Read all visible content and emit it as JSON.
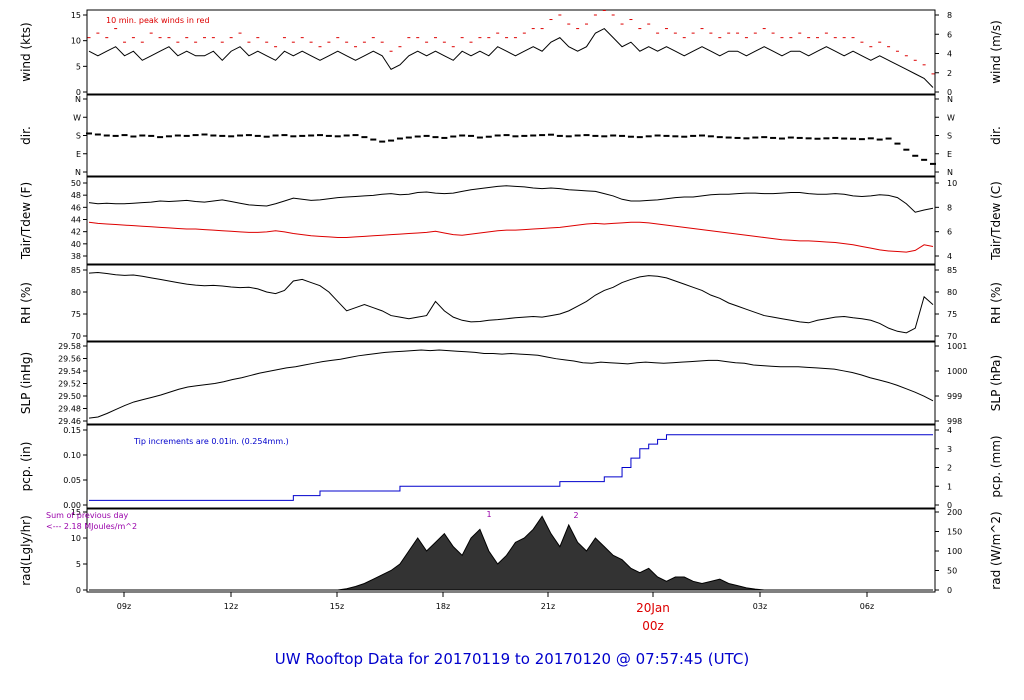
{
  "footer_title": "UW Rooftop Data for 20170119  to  20170120 @ 07:57:45  (UTC)",
  "colors": {
    "axis": "#000000",
    "red": "#dd0000",
    "blue": "#0000cc",
    "purple": "#9900aa"
  },
  "chart_data": [
    {
      "id": "wind",
      "type": "line",
      "ylabel_left": "wind (kts)",
      "ylabel_right": "wind (m/s)",
      "yticks_left": [
        "0",
        "5",
        "10",
        "15"
      ],
      "yticks_right": [
        "0",
        "2",
        "4",
        "6",
        "8"
      ],
      "ylim": [
        0,
        17
      ],
      "annotation": "10 min. peak winds in red",
      "series": [
        {
          "values": [
            9,
            8,
            9,
            10,
            8,
            9,
            7,
            8,
            9,
            10,
            8,
            9,
            8,
            8,
            9,
            7,
            9,
            10,
            8,
            9,
            8,
            7,
            9,
            8,
            9,
            8,
            7,
            8,
            9,
            8,
            7,
            8,
            9,
            8,
            5,
            6,
            8,
            9,
            8,
            9,
            8,
            7,
            9,
            8,
            9,
            8,
            10,
            9,
            8,
            9,
            10,
            9,
            11,
            12,
            10,
            9,
            10,
            13,
            14,
            12,
            10,
            11,
            9,
            10,
            9,
            10,
            9,
            8,
            9,
            10,
            9,
            8,
            9,
            9,
            8,
            9,
            10,
            9,
            8,
            9,
            9,
            8,
            9,
            10,
            9,
            8,
            9,
            8,
            7,
            8,
            7,
            6,
            5,
            4,
            3,
            1
          ]
        },
        {
          "values": [
            12,
            13,
            12,
            14,
            11,
            12,
            11,
            13,
            12,
            12,
            11,
            12,
            11,
            12,
            12,
            11,
            12,
            13,
            11,
            12,
            11,
            10,
            12,
            11,
            12,
            11,
            10,
            11,
            12,
            11,
            10,
            11,
            12,
            11,
            9,
            10,
            12,
            12,
            11,
            12,
            11,
            10,
            12,
            11,
            12,
            12,
            13,
            12,
            12,
            13,
            14,
            14,
            16,
            17,
            15,
            14,
            15,
            17,
            18,
            17,
            15,
            16,
            14,
            15,
            13,
            14,
            13,
            12,
            13,
            14,
            13,
            12,
            13,
            13,
            12,
            13,
            14,
            13,
            12,
            12,
            13,
            12,
            12,
            13,
            12,
            12,
            12,
            11,
            10,
            11,
            10,
            9,
            8,
            7,
            6,
            4
          ]
        }
      ]
    },
    {
      "id": "dir",
      "type": "scatter",
      "ylabel_left": "dir.",
      "ylabel_right": "dir.",
      "yticks_left": [
        "N",
        "E",
        "S",
        "W",
        "N"
      ],
      "yticks_right": [
        "N",
        "E",
        "S",
        "W",
        "N"
      ],
      "ylim": [
        0,
        360
      ],
      "series": [
        {
          "values": [
            190,
            185,
            180,
            178,
            182,
            175,
            180,
            178,
            172,
            176,
            180,
            178,
            182,
            185,
            180,
            178,
            176,
            180,
            182,
            178,
            174,
            180,
            182,
            176,
            178,
            180,
            182,
            178,
            176,
            180,
            182,
            172,
            160,
            150,
            155,
            165,
            170,
            175,
            178,
            172,
            168,
            175,
            180,
            178,
            170,
            174,
            180,
            182,
            176,
            178,
            180,
            182,
            184,
            178,
            176,
            180,
            182,
            178,
            176,
            180,
            178,
            174,
            172,
            176,
            180,
            178,
            176,
            174,
            178,
            180,
            176,
            172,
            170,
            168,
            166,
            170,
            172,
            168,
            165,
            170,
            168,
            166,
            164,
            166,
            168,
            165,
            164,
            162,
            166,
            160,
            165,
            140,
            110,
            80,
            60,
            40
          ]
        }
      ]
    },
    {
      "id": "temp",
      "type": "line",
      "ylabel_left": "Tair/Tdew (F)",
      "ylabel_right": "Tair/Tdew (C)",
      "yticks_left": [
        "38",
        "40",
        "42",
        "44",
        "46",
        "48",
        "50"
      ],
      "yticks_right": [
        "4",
        "6",
        "8",
        "10"
      ],
      "ylim": [
        37.5,
        50.5
      ],
      "series": [
        {
          "values": [
            47,
            46.8,
            46.9,
            46.8,
            46.8,
            46.9,
            47,
            47.1,
            47.3,
            47.2,
            47.3,
            47.4,
            47.2,
            47.1,
            47.3,
            47.5,
            47.2,
            46.9,
            46.6,
            46.5,
            46.4,
            46.8,
            47.3,
            47.8,
            47.6,
            47.4,
            47.5,
            47.7,
            47.9,
            48,
            48.1,
            48.2,
            48.3,
            48.5,
            48.6,
            48.4,
            48.5,
            48.8,
            48.9,
            48.7,
            48.6,
            48.7,
            49,
            49.3,
            49.5,
            49.7,
            49.9,
            50,
            49.9,
            49.8,
            49.6,
            49.5,
            49.6,
            49.5,
            49.3,
            49.2,
            49.1,
            49,
            48.6,
            48.2,
            47.6,
            47.3,
            47.3,
            47.4,
            47.5,
            47.7,
            47.9,
            48,
            48,
            48.2,
            48.4,
            48.5,
            48.5,
            48.6,
            48.7,
            48.7,
            48.6,
            48.6,
            48.7,
            48.8,
            48.8,
            48.6,
            48.5,
            48.5,
            48.6,
            48.5,
            48.2,
            48.1,
            48.2,
            48.4,
            48.3,
            47.9,
            46.8,
            45.3,
            45.7,
            46
          ]
        },
        {
          "values": [
            43.5,
            43.3,
            43.2,
            43.1,
            43,
            42.9,
            42.8,
            42.7,
            42.6,
            42.5,
            42.4,
            42.3,
            42.3,
            42.2,
            42.1,
            42,
            41.9,
            41.8,
            41.7,
            41.7,
            41.8,
            42,
            41.8,
            41.5,
            41.3,
            41.1,
            41,
            40.9,
            40.8,
            40.8,
            40.9,
            41,
            41.1,
            41.2,
            41.3,
            41.4,
            41.5,
            41.6,
            41.7,
            41.9,
            41.6,
            41.3,
            41.2,
            41.4,
            41.6,
            41.8,
            42,
            42.1,
            42.1,
            42.2,
            42.3,
            42.4,
            42.5,
            42.6,
            42.8,
            43,
            43.2,
            43.3,
            43.2,
            43.3,
            43.4,
            43.5,
            43.5,
            43.4,
            43.2,
            43,
            42.8,
            42.6,
            42.4,
            42.2,
            42,
            41.8,
            41.6,
            41.4,
            41.2,
            41,
            40.8,
            40.6,
            40.4,
            40.3,
            40.2,
            40.2,
            40.1,
            40,
            39.9,
            39.7,
            39.5,
            39.2,
            38.9,
            38.6,
            38.4,
            38.3,
            38.2,
            38.5,
            39.5,
            39.2
          ]
        }
      ]
    },
    {
      "id": "rh",
      "type": "line",
      "ylabel_left": "RH (%)",
      "ylabel_right": "RH (%)",
      "yticks_left": [
        "70",
        "75",
        "80",
        "85"
      ],
      "yticks_right": [
        "70",
        "75",
        "80",
        "85"
      ],
      "ylim": [
        68,
        89
      ],
      "series": [
        {
          "values": [
            88,
            88.2,
            87.9,
            87.5,
            87.3,
            87.4,
            87,
            86.5,
            86,
            85.5,
            85,
            84.5,
            84.2,
            84,
            84.1,
            83.9,
            83.6,
            83.4,
            83.5,
            83,
            82,
            81.5,
            82.5,
            85.5,
            86,
            85,
            84,
            82,
            79,
            76,
            77,
            78,
            77,
            76,
            74.5,
            74,
            73.5,
            74,
            74.5,
            79,
            76,
            74,
            73,
            72.5,
            72.6,
            73,
            73.2,
            73.5,
            73.8,
            74,
            74.2,
            74,
            74.5,
            75,
            76,
            77.5,
            79,
            81,
            82.5,
            83.5,
            85,
            86,
            86.8,
            87.2,
            87,
            86.5,
            85.5,
            84.5,
            83.5,
            82.5,
            81,
            80,
            78.5,
            77.5,
            76.5,
            75.5,
            74.5,
            74,
            73.5,
            73,
            72.5,
            72.2,
            73,
            73.5,
            74,
            74.2,
            73.8,
            73.5,
            73,
            72,
            70.5,
            69.5,
            69,
            70.5,
            80.5,
            78
          ]
        }
      ]
    },
    {
      "id": "slp",
      "type": "line",
      "ylabel_left": "SLP (inHg)",
      "ylabel_right": "SLP (hPa)",
      "yticks_left": [
        "29.46",
        "29.48",
        "29.50",
        "29.52",
        "29.54",
        "29.56",
        "29.58"
      ],
      "yticks_right": [
        "998",
        "999",
        "1000",
        "1001"
      ],
      "ylim": [
        29.455,
        29.585
      ],
      "series": [
        {
          "values": [
            29.46,
            29.462,
            29.468,
            29.475,
            29.482,
            29.488,
            29.492,
            29.496,
            29.5,
            29.505,
            29.51,
            29.514,
            29.516,
            29.518,
            29.52,
            29.523,
            29.527,
            29.53,
            29.534,
            29.538,
            29.541,
            29.544,
            29.547,
            29.549,
            29.552,
            29.555,
            29.558,
            29.56,
            29.562,
            29.565,
            29.568,
            29.57,
            29.572,
            29.574,
            29.575,
            29.576,
            29.577,
            29.578,
            29.577,
            29.578,
            29.577,
            29.576,
            29.575,
            29.574,
            29.572,
            29.572,
            29.571,
            29.572,
            29.571,
            29.57,
            29.569,
            29.566,
            29.563,
            29.561,
            29.559,
            29.556,
            29.555,
            29.557,
            29.556,
            29.555,
            29.554,
            29.556,
            29.557,
            29.556,
            29.555,
            29.556,
            29.557,
            29.558,
            29.559,
            29.56,
            29.56,
            29.558,
            29.556,
            29.555,
            29.552,
            29.551,
            29.55,
            29.549,
            29.549,
            29.549,
            29.548,
            29.547,
            29.546,
            29.545,
            29.542,
            29.539,
            29.535,
            29.53,
            29.526,
            29.522,
            29.517,
            29.511,
            29.505,
            29.498,
            29.49
          ]
        }
      ]
    },
    {
      "id": "pcp",
      "type": "line",
      "ylabel_left": "pcp. (in)",
      "ylabel_right": "pcp. (mm)",
      "yticks_left": [
        "0.00",
        "0.05",
        "0.10",
        "0.15"
      ],
      "yticks_right": [
        "0",
        "1",
        "2",
        "3",
        "4"
      ],
      "ylim": [
        0,
        0.16
      ],
      "annotation": "Tip increments are 0.01in. (0.254mm.)",
      "series": [
        {
          "values": [
            0.01,
            0.01,
            0.01,
            0.01,
            0.01,
            0.01,
            0.01,
            0.01,
            0.01,
            0.01,
            0.01,
            0.01,
            0.01,
            0.01,
            0.01,
            0.01,
            0.01,
            0.01,
            0.01,
            0.01,
            0.01,
            0.01,
            0.01,
            0.02,
            0.02,
            0.02,
            0.03,
            0.03,
            0.03,
            0.03,
            0.03,
            0.03,
            0.03,
            0.03,
            0.03,
            0.04,
            0.04,
            0.04,
            0.04,
            0.04,
            0.04,
            0.04,
            0.04,
            0.04,
            0.04,
            0.04,
            0.04,
            0.04,
            0.04,
            0.04,
            0.04,
            0.04,
            0.04,
            0.05,
            0.05,
            0.05,
            0.05,
            0.05,
            0.06,
            0.06,
            0.08,
            0.1,
            0.12,
            0.13,
            0.14,
            0.15,
            0.15,
            0.15,
            0.15,
            0.15,
            0.15,
            0.15,
            0.15,
            0.15,
            0.15,
            0.15,
            0.15,
            0.15,
            0.15,
            0.15,
            0.15,
            0.15,
            0.15,
            0.15,
            0.15,
            0.15,
            0.15,
            0.15,
            0.15,
            0.15,
            0.15,
            0.15,
            0.15,
            0.15,
            0.15,
            0.15
          ]
        }
      ]
    },
    {
      "id": "rad",
      "type": "area",
      "ylabel_left": "rad(Lgly/hr)",
      "ylabel_right": "rad (W/m^2)",
      "yticks_left": [
        "0",
        "5",
        "10",
        "15"
      ],
      "yticks_right": [
        "0",
        "50",
        "100",
        "150",
        "200"
      ],
      "ylim": [
        0,
        18
      ],
      "annotations": [
        "Sum of previous day",
        "<--- 2.18 MJoules/m^2",
        "1",
        "2"
      ],
      "series": [
        {
          "values": [
            0,
            0,
            0,
            0,
            0,
            0,
            0,
            0,
            0,
            0,
            0,
            0,
            0,
            0,
            0,
            0,
            0,
            0,
            0,
            0,
            0,
            0,
            0,
            0,
            0,
            0,
            0,
            0,
            0,
            0.3,
            0.8,
            1.5,
            2.5,
            3.5,
            4.5,
            6,
            9,
            12,
            9,
            11,
            13,
            10,
            8,
            12,
            14,
            9,
            6,
            8,
            11,
            12,
            14,
            17,
            13,
            10,
            15,
            11,
            9,
            12,
            10,
            8,
            7,
            5,
            4,
            5,
            3,
            2,
            3,
            3,
            2,
            1.5,
            2,
            2.5,
            1.5,
            1,
            0.5,
            0.2,
            0,
            0,
            0,
            0,
            0,
            0,
            0,
            0,
            0,
            0,
            0,
            0,
            0,
            0,
            0,
            0,
            0,
            0,
            0,
            0
          ]
        }
      ]
    }
  ],
  "x_axis": {
    "ticks": [
      "09z",
      "12z",
      "15z",
      "18z",
      "21z",
      "00z",
      "03z",
      "06z"
    ],
    "date_label": "20Jan",
    "date_tick_label": "00z"
  }
}
